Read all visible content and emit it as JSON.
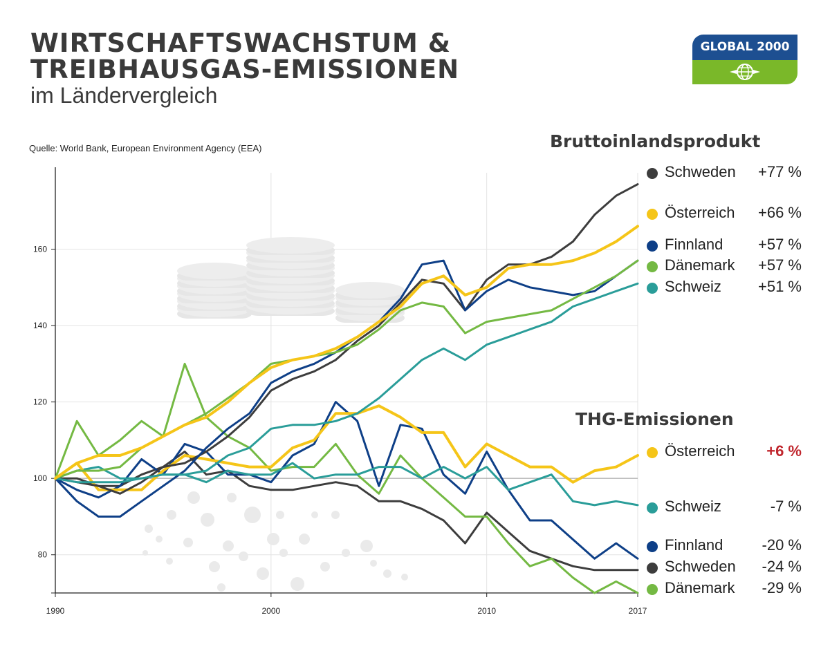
{
  "header": {
    "title_line1": "WIRTSCHAFTSWACHSTUM &",
    "title_line2": "TREIBHAUSGAS-EMISSIONEN",
    "subtitle": "im Ländervergleich",
    "source": "Quelle: World Bank, European Environment Agency (EEA)",
    "logo_text": "GLOBAL 2000"
  },
  "colors": {
    "Schweden": "#3d3d3d",
    "Österreich": "#f5c518",
    "Finnland": "#0e3f87",
    "Dänemark": "#74b943",
    "Schweiz": "#2a9d99",
    "negative_accent": "#c0262d"
  },
  "legend_gdp": {
    "title": "Bruttoinlandsprodukt",
    "items": [
      {
        "name": "Schweden",
        "value": "+77 %"
      },
      {
        "name": "Österreich",
        "value": "+66 %"
      },
      {
        "name": "Finnland",
        "value": "+57 %"
      },
      {
        "name": "Dänemark",
        "value": "+57 %"
      },
      {
        "name": "Schweiz",
        "value": "+51 %"
      }
    ]
  },
  "legend_ghg": {
    "title": "THG-Emissionen",
    "items": [
      {
        "name": "Österreich",
        "value": "+6 %"
      },
      {
        "name": "Schweiz",
        "value": "-7 %"
      },
      {
        "name": "Finnland",
        "value": "-20 %"
      },
      {
        "name": "Schweden",
        "value": "-24 %"
      },
      {
        "name": "Dänemark",
        "value": "-29 %"
      }
    ]
  },
  "chart_data": {
    "type": "line",
    "xlim": [
      1990,
      2017
    ],
    "ylim": [
      70,
      180
    ],
    "x_ticks": [
      1990,
      2000,
      2010,
      2017
    ],
    "y_ticks": [
      80,
      100,
      120,
      140,
      160
    ],
    "baseline": 100,
    "grid": true,
    "years": [
      1990,
      1991,
      1992,
      1993,
      1994,
      1995,
      1996,
      1997,
      1998,
      1999,
      2000,
      2001,
      2002,
      2003,
      2004,
      2005,
      2006,
      2007,
      2008,
      2009,
      2010,
      2011,
      2012,
      2013,
      2014,
      2015,
      2016,
      2017
    ],
    "gdp_series": [
      {
        "name": "Schweden",
        "values": [
          100,
          99,
          98,
          96,
          99,
          103,
          104,
          107,
          111,
          116,
          123,
          126,
          128,
          131,
          136,
          140,
          146,
          152,
          151,
          144,
          152,
          156,
          156,
          158,
          162,
          169,
          174,
          177
        ]
      },
      {
        "name": "Finnland",
        "values": [
          100,
          94,
          90,
          90,
          94,
          98,
          102,
          108,
          113,
          117,
          125,
          128,
          130,
          133,
          137,
          141,
          147,
          156,
          157,
          144,
          149,
          152,
          150,
          149,
          148,
          149,
          153,
          157
        ]
      },
      {
        "name": "Dänemark",
        "values": [
          100,
          102,
          102,
          103,
          108,
          111,
          114,
          117,
          121,
          125,
          130,
          131,
          132,
          133,
          135,
          139,
          144,
          146,
          145,
          138,
          141,
          142,
          143,
          144,
          147,
          150,
          153,
          157
        ]
      },
      {
        "name": "Schweiz",
        "values": [
          100,
          99,
          99,
          99,
          100,
          101,
          101,
          102,
          106,
          108,
          113,
          114,
          114,
          115,
          117,
          121,
          126,
          131,
          134,
          131,
          135,
          137,
          139,
          141,
          145,
          147,
          149,
          151
        ]
      },
      {
        "name": "Österreich",
        "values": [
          100,
          104,
          106,
          106,
          108,
          111,
          114,
          116,
          120,
          125,
          129,
          131,
          132,
          134,
          137,
          141,
          145,
          151,
          153,
          148,
          150,
          155,
          156,
          156,
          157,
          159,
          162,
          166
        ]
      }
    ],
    "ghg_series": [
      {
        "name": "Schweden",
        "values": [
          100,
          100,
          98,
          98,
          101,
          103,
          107,
          101,
          102,
          98,
          97,
          97,
          98,
          99,
          98,
          94,
          94,
          92,
          89,
          83,
          91,
          86,
          81,
          79,
          77,
          76,
          76,
          76
        ]
      },
      {
        "name": "Finnland",
        "values": [
          100,
          97,
          95,
          98,
          105,
          101,
          109,
          107,
          101,
          101,
          99,
          106,
          109,
          120,
          115,
          98,
          114,
          113,
          101,
          96,
          107,
          97,
          89,
          89,
          84,
          79,
          83,
          79
        ]
      },
      {
        "name": "Dänemark",
        "values": [
          100,
          115,
          106,
          110,
          115,
          111,
          130,
          116,
          111,
          108,
          102,
          103,
          103,
          109,
          101,
          96,
          106,
          100,
          95,
          90,
          90,
          83,
          77,
          79,
          74,
          70,
          73,
          70
        ]
      },
      {
        "name": "Schweiz",
        "values": [
          100,
          102,
          103,
          100,
          100,
          101,
          101,
          99,
          102,
          101,
          101,
          104,
          100,
          101,
          101,
          103,
          103,
          100,
          103,
          100,
          103,
          97,
          99,
          101,
          94,
          93,
          94,
          93
        ]
      },
      {
        "name": "Österreich",
        "values": [
          100,
          104,
          97,
          97,
          97,
          102,
          106,
          105,
          104,
          103,
          103,
          108,
          110,
          117,
          117,
          119,
          116,
          112,
          112,
          103,
          109,
          106,
          103,
          103,
          99,
          102,
          103,
          106
        ]
      }
    ]
  }
}
